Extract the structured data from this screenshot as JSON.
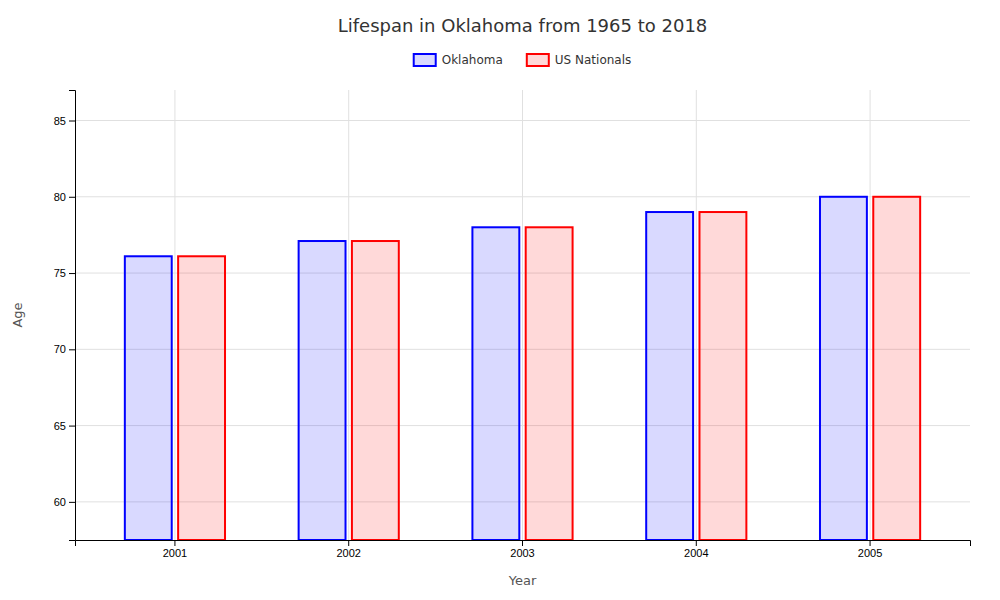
{
  "chart_data": {
    "type": "bar",
    "title": "Lifespan in Oklahoma from 1965 to 2018",
    "x_label": "Year",
    "y_label": "Age",
    "categories": [
      "2001",
      "2002",
      "2003",
      "2004",
      "2005"
    ],
    "series": [
      {
        "name": "Oklahoma",
        "color": "#0000ff",
        "values": [
          76.1,
          77.1,
          78.0,
          79.0,
          80.0
        ]
      },
      {
        "name": "US Nationals",
        "color": "#ff0000",
        "values": [
          76.1,
          77.1,
          78.0,
          79.0,
          80.0
        ]
      }
    ],
    "ylim": [
      57.5,
      87
    ],
    "yticks": [
      60,
      65,
      70,
      75,
      80,
      85
    ],
    "grid": true,
    "legend": "top"
  }
}
